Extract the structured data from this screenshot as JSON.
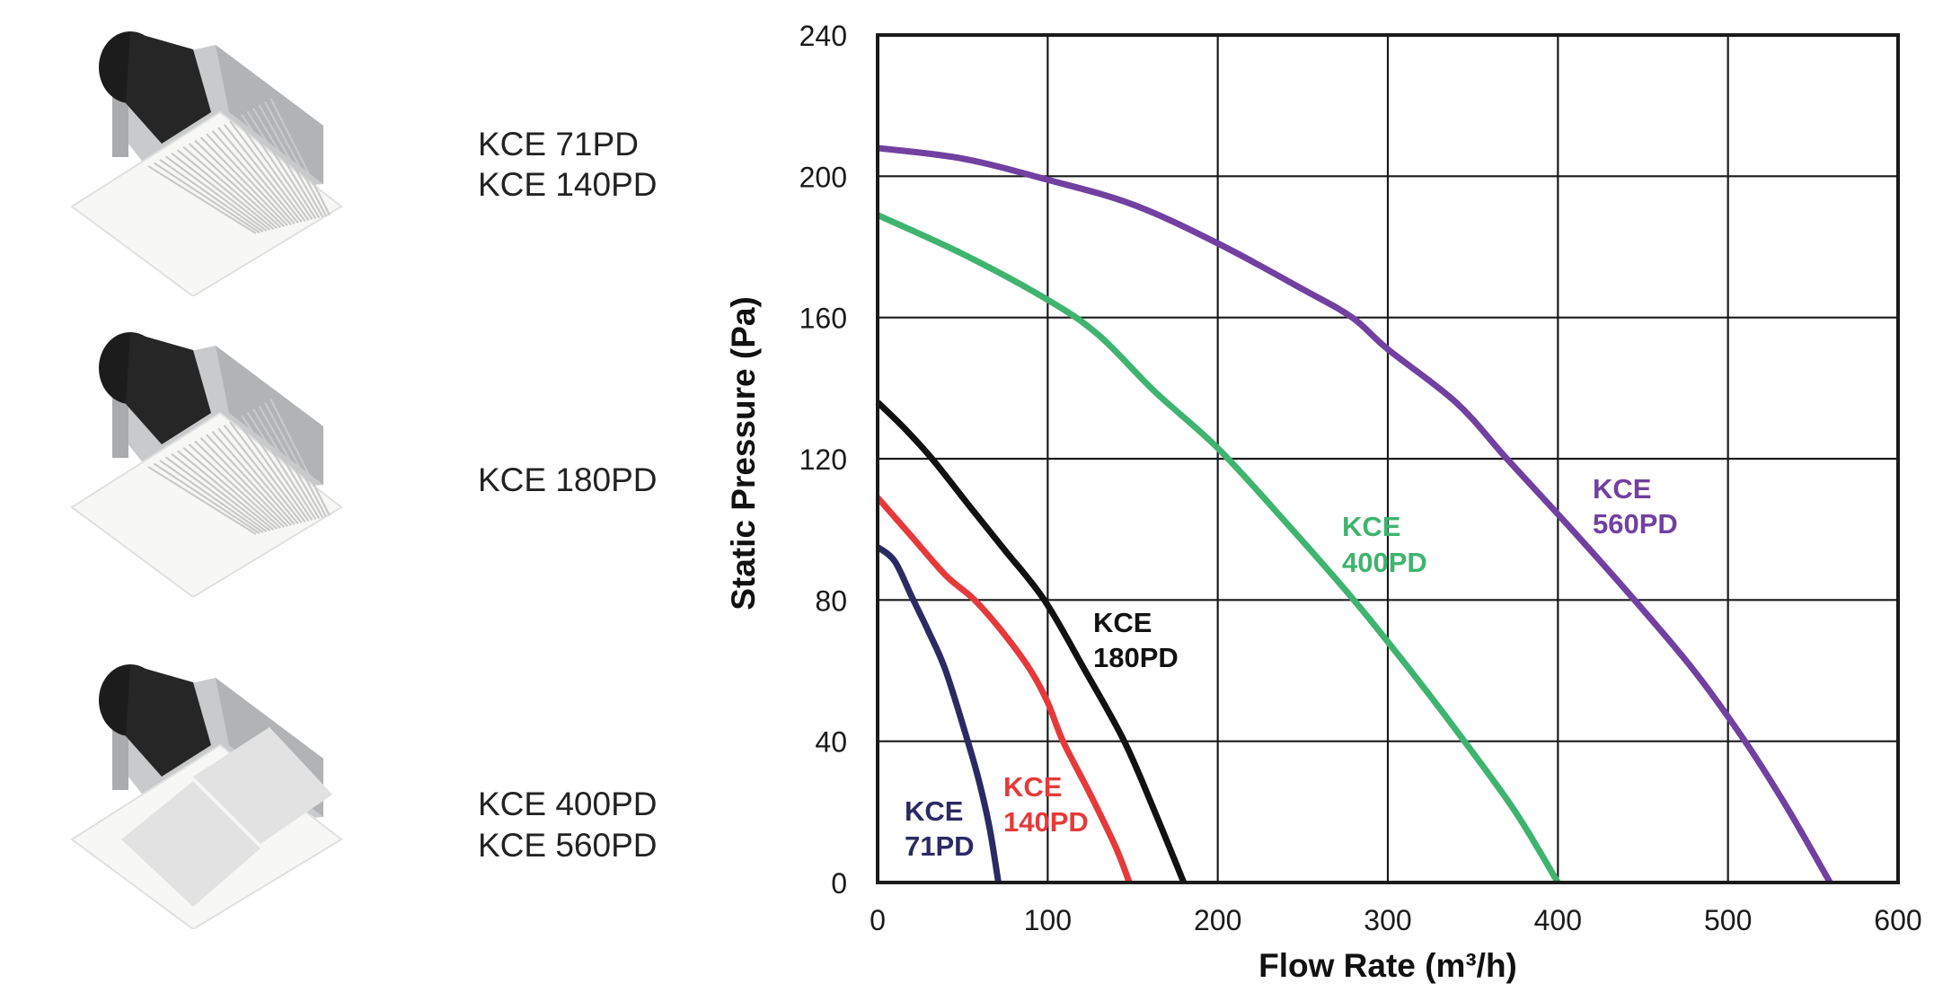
{
  "products": [
    {
      "names": [
        "KCE 71PD",
        "KCE 140PD"
      ],
      "grille": "louver"
    },
    {
      "names": [
        "KCE 180PD"
      ],
      "grille": "louver"
    },
    {
      "names": [
        "KCE 400PD",
        "KCE 560PD"
      ],
      "grille": "twin-panel"
    }
  ],
  "chart_data": {
    "type": "line",
    "title": "",
    "xlabel": "Flow Rate (m³/h)",
    "ylabel": "Static Pressure (Pa)",
    "xlim": [
      0,
      600
    ],
    "ylim": [
      0,
      240
    ],
    "xticks": [
      0,
      100,
      200,
      300,
      400,
      500,
      600
    ],
    "yticks": [
      0,
      40,
      80,
      120,
      160,
      200,
      240
    ],
    "grid": true,
    "legend": "inline-labels",
    "series": [
      {
        "name": "KCE 71PD",
        "label_lines": [
          "KCE",
          "71PD"
        ],
        "color": "#2b2a63",
        "points": [
          [
            0,
            95
          ],
          [
            10,
            91
          ],
          [
            20,
            81
          ],
          [
            30,
            71
          ],
          [
            40,
            60
          ],
          [
            53,
            40
          ],
          [
            60,
            28
          ],
          [
            66,
            15
          ],
          [
            71,
            0
          ]
        ]
      },
      {
        "name": "KCE 140PD",
        "label_lines": [
          "KCE",
          "140PD"
        ],
        "color": "#e63a3a",
        "points": [
          [
            0,
            109
          ],
          [
            20,
            98
          ],
          [
            40,
            87
          ],
          [
            57,
            80
          ],
          [
            75,
            70
          ],
          [
            90,
            60
          ],
          [
            100,
            51
          ],
          [
            109,
            40
          ],
          [
            125,
            25
          ],
          [
            140,
            10
          ],
          [
            148,
            0
          ]
        ]
      },
      {
        "name": "KCE 180PD",
        "label_lines": [
          "KCE",
          "180PD"
        ],
        "color": "#111111",
        "points": [
          [
            0,
            136
          ],
          [
            15,
            129
          ],
          [
            32,
            120
          ],
          [
            55,
            106
          ],
          [
            75,
            94
          ],
          [
            98,
            80
          ],
          [
            122,
            60
          ],
          [
            145,
            40
          ],
          [
            163,
            20
          ],
          [
            180,
            0
          ]
        ]
      },
      {
        "name": "KCE 400PD",
        "label_lines": [
          "KCE",
          "400PD"
        ],
        "color": "#3fb46f",
        "points": [
          [
            0,
            189
          ],
          [
            50,
            178
          ],
          [
            100,
            165
          ],
          [
            130,
            155
          ],
          [
            163,
            139
          ],
          [
            200,
            123
          ],
          [
            240,
            102
          ],
          [
            280,
            80
          ],
          [
            315,
            59
          ],
          [
            345,
            40
          ],
          [
            375,
            20
          ],
          [
            400,
            0
          ]
        ]
      },
      {
        "name": "KCE 560PD",
        "label_lines": [
          "KCE",
          "560PD"
        ],
        "color": "#7140a0",
        "points": [
          [
            0,
            208
          ],
          [
            50,
            205
          ],
          [
            100,
            199
          ],
          [
            150,
            192
          ],
          [
            200,
            181
          ],
          [
            250,
            168
          ],
          [
            279,
            160
          ],
          [
            300,
            151
          ],
          [
            340,
            136
          ],
          [
            370,
            120
          ],
          [
            410,
            99
          ],
          [
            445,
            80
          ],
          [
            480,
            60
          ],
          [
            510,
            40
          ],
          [
            535,
            21
          ],
          [
            560,
            0
          ]
        ]
      }
    ]
  }
}
